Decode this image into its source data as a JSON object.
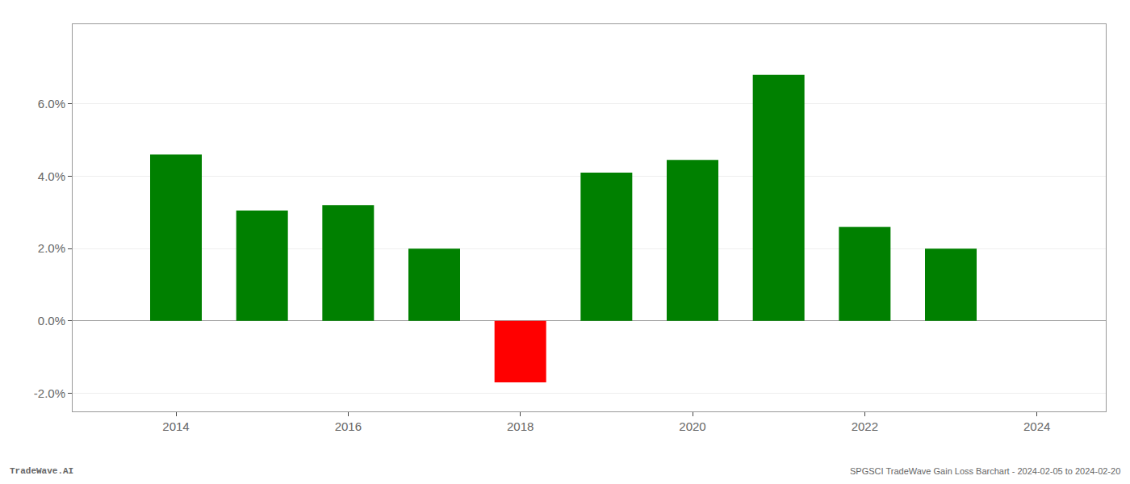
{
  "chart_data": {
    "type": "bar",
    "x": [
      2014,
      2015,
      2016,
      2017,
      2018,
      2019,
      2020,
      2021,
      2022,
      2023
    ],
    "values": [
      0.046,
      0.0305,
      0.032,
      0.02,
      -0.017,
      0.041,
      0.0445,
      0.068,
      0.026,
      0.02
    ],
    "colors": [
      "#008000",
      "#008000",
      "#008000",
      "#008000",
      "#ff0000",
      "#008000",
      "#008000",
      "#008000",
      "#008000",
      "#008000"
    ],
    "xlim": [
      2012.8,
      2024.8
    ],
    "xticks": [
      2014,
      2016,
      2018,
      2020,
      2022,
      2024
    ],
    "ylim": [
      -0.025,
      0.082
    ],
    "yticks": [
      {
        "value": -0.02,
        "label": "-2.0%"
      },
      {
        "value": 0.0,
        "label": "0.0%"
      },
      {
        "value": 0.02,
        "label": "2.0%"
      },
      {
        "value": 0.04,
        "label": "4.0%"
      },
      {
        "value": 0.06,
        "label": "6.0%"
      }
    ],
    "grid": "y",
    "annotations": [
      "TradeWave.AI",
      "SPGSCI TradeWave Gain Loss Barchart - 2024-02-05 to 2024-02-20"
    ]
  }
}
